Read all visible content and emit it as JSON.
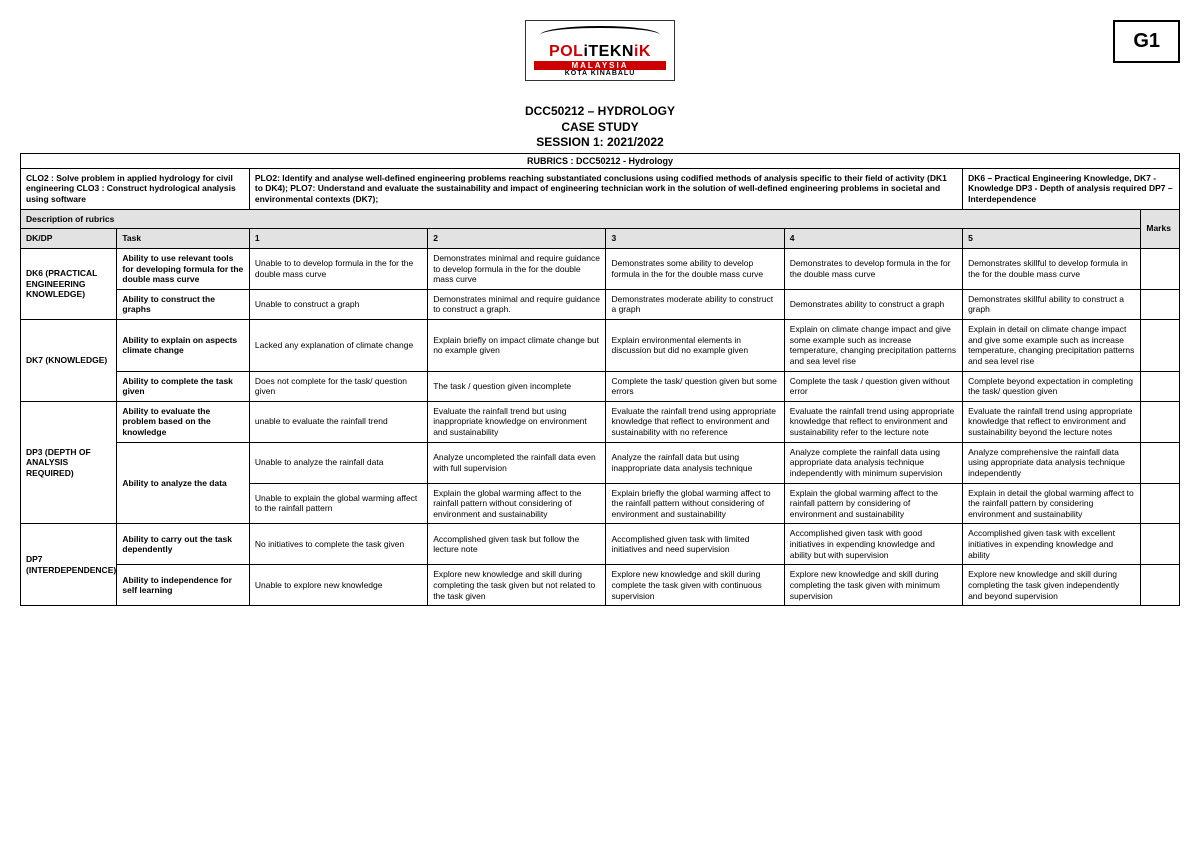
{
  "corner_badge": "G1",
  "logo": {
    "word": "POLiTEKNiK",
    "sub": "MALAYSIA",
    "campus": "KOTA KINABALU"
  },
  "title1": "DCC50212 – HYDROLOGY",
  "title2": "CASE STUDY",
  "title3": "SESSION 1: 2021/2022",
  "rubrics_label": "RUBRICS : DCC50212 - Hydrology",
  "clo_text": "CLO2 : Solve problem in applied hydrology for civil engineering CLO3 : Construct hydrological analysis using software",
  "plo_text": "PLO2: Identify and analyse well-defined engineering problems reaching substantiated conclusions using codified methods of analysis specific to their field of activity (DK1 to DK4); PLO7: Understand and evaluate the sustainability and impact of engineering technician work in the solution of well-defined engineering problems in societal and environmental contexts (DK7);",
  "dk_text": "DK6 – Practical Engineering Knowledge, DK7 - Knowledge DP3 - Depth of analysis required DP7 – Interdependence",
  "desc_header": "Description of rubrics",
  "marks_header": "Marks",
  "col": {
    "dkdp": "DK/DP",
    "task": "Task",
    "l1": "1",
    "l2": "2",
    "l3": "3",
    "l4": "4",
    "l5": "5"
  },
  "groups": [
    {
      "name": "DK6 (PRACTICAL ENGINEERING KNOWLEDGE)",
      "rows": [
        {
          "task": "Ability to use relevant tools for developing formula for the double mass curve",
          "c": [
            "Unable to to develop formula in the for the double mass curve",
            "Demonstrates minimal and require guidance to develop formula in the for the double mass curve",
            "Demonstrates some ability to develop formula in the for the double mass curve",
            "Demonstrates to develop formula in the for the double mass curve",
            "Demonstrates skillful to develop formula in the for the double mass curve"
          ]
        },
        {
          "task": "Ability to construct the graphs",
          "c": [
            "Unable to construct a graph",
            "Demonstrates minimal and require guidance to construct a graph.",
            "Demonstrates moderate ability to construct a graph",
            "Demonstrates ability to construct a graph",
            "Demonstrates skillful ability to construct a graph"
          ]
        }
      ]
    },
    {
      "name": "DK7 (KNOWLEDGE)",
      "rows": [
        {
          "task": "Ability to explain on aspects climate change",
          "c": [
            "Lacked any explanation of climate change",
            "Explain briefly on impact climate change but no example given",
            "Explain environmental elements in discussion but did no example given",
            "Explain on climate change impact and give some example such as increase temperature, changing precipitation patterns and sea level rise",
            "Explain in detail on climate change impact and give some example such as increase temperature, changing precipitation patterns and sea level rise"
          ]
        },
        {
          "task": "Ability to complete the task given",
          "c": [
            "Does not complete for the task/ question given",
            "The task / question given incomplete",
            "Complete the task/ question given but some errors",
            "Complete the task / question given without error",
            "Complete beyond expectation in completing the task/ question given"
          ]
        }
      ]
    },
    {
      "name": "DP3 (DEPTH OF ANALYSIS REQUIRED)",
      "rows": [
        {
          "task": "Ability to evaluate the problem based on the knowledge",
          "c": [
            "unable to evaluate the rainfall trend",
            "Evaluate the rainfall trend but using inappropriate knowledge on environment and sustainability",
            "Evaluate the rainfall trend using appropriate knowledge that reflect to environment and sustainability with no reference",
            "Evaluate the rainfall trend using appropriate knowledge that reflect to environment and sustainability refer to the lecture note",
            "Evaluate the rainfall trend using appropriate knowledge that reflect to environment and sustainability beyond the lecture notes"
          ]
        },
        {
          "task": "Ability to analyze the data",
          "extra": 1,
          "c": [
            "Unable to analyze the rainfall data",
            "Analyze uncompleted the rainfall data even with full supervision",
            "Analyze the rainfall data but using inappropriate data analysis technique",
            "Analyze complete the rainfall data using appropriate data analysis technique independently with minimum supervision",
            "Analyze comprehensive the rainfall data using appropriate data analysis technique independently"
          ]
        },
        {
          "c": [
            "Unable to explain the global warming affect to the rainfall pattern",
            "Explain the global warming affect to the rainfall pattern without considering of environment and sustainability",
            "Explain briefly the global warming affect to the rainfall pattern without considering of environment and sustainability",
            "Explain the global warming affect to the rainfall pattern by considering of environment and sustainability",
            "Explain in detail the global warming affect to the rainfall pattern by considering environment and sustainability"
          ]
        }
      ]
    },
    {
      "name": "DP7 (INTERDEPENDENCE)",
      "rows": [
        {
          "task": "Ability to carry out the task dependently",
          "c": [
            "No initiatives to complete the task given",
            "Accomplished given task but follow the lecture note",
            "Accomplished given task with limited initiatives and need supervision",
            "Accomplished given task with good initiatives in expending knowledge and ability but with supervision",
            "Accomplished given task with excellent initiatives in expending knowledge and ability"
          ]
        },
        {
          "task": "Ability to independence for self learning",
          "c": [
            "Unable to explore new knowledge",
            "Explore new knowledge and skill during completing the task given but not related to the task given",
            "Explore new knowledge and skill during complete the task given with continuous supervision",
            "Explore new knowledge and skill during completing the task given with minimum supervision",
            "Explore new knowledge and skill during completing the task given independently and beyond supervision"
          ]
        }
      ]
    }
  ]
}
